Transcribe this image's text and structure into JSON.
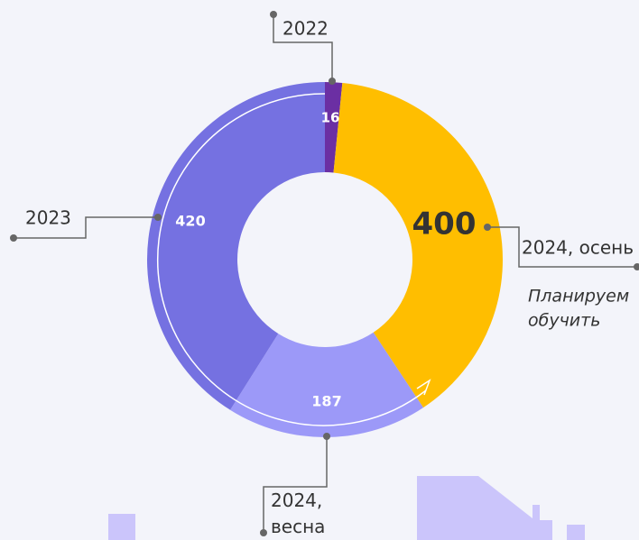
{
  "chart_data": {
    "type": "donut",
    "categories": [
      "2022",
      "2024, осень",
      "2024, весна",
      "2023"
    ],
    "values": [
      16,
      400,
      187,
      420
    ],
    "colors": [
      "#6b2fa3",
      "#ffbe00",
      "#9c99f8",
      "#7571e1"
    ],
    "annotation": [
      "Планируем",
      "обучить"
    ]
  }
}
